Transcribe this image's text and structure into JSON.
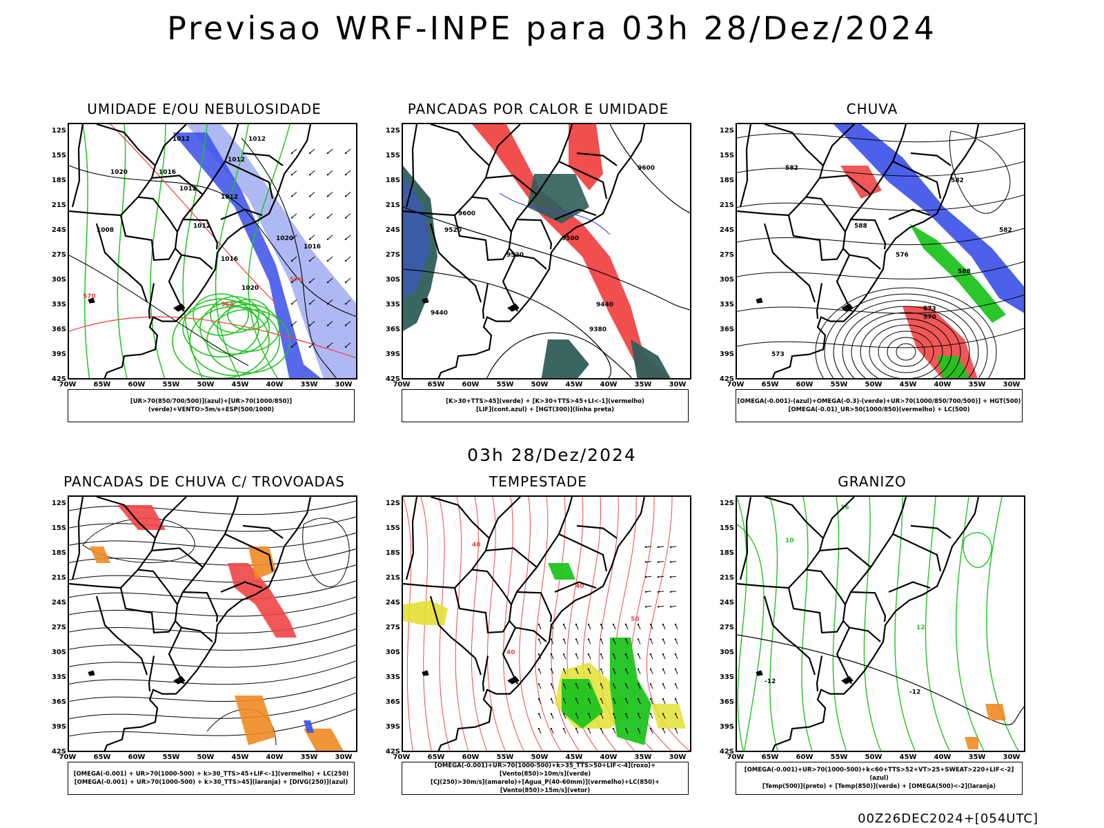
{
  "title": "Previsao WRF-INPE  para 03h 28/Dez/2024",
  "mid_title": "03h 28/Dez/2024",
  "run_label": "00Z26DEC2024+[054UTC]",
  "lat_labels": [
    "12S",
    "15S",
    "18S",
    "21S",
    "24S",
    "27S",
    "30S",
    "33S",
    "36S",
    "39S",
    "42S"
  ],
  "lon_labels": [
    "70W",
    "65W",
    "60W",
    "55W",
    "50W",
    "45W",
    "40W",
    "35W",
    "30W"
  ],
  "colors": {
    "blue": "#3a4fe8",
    "lightblue": "#9aa8f0",
    "green": "#1fc41f",
    "red": "#f04545",
    "darkteal": "#2f5e5a",
    "orange": "#f08a24",
    "yellow": "#e2e034"
  },
  "panels": [
    {
      "id": "umidade",
      "title": "UMIDADE E/OU NEBULOSIDADE",
      "legend": [
        "[UR>70(850/700/500)](azul)+[UR>70(1000/850)](verde)+VENTO>5m/s+ESP(500/1000)"
      ],
      "contour_labels": [
        "1012",
        "1012",
        "1012",
        "1016",
        "1020",
        "1012",
        "1012",
        "1020",
        "1012",
        "1008",
        "1016",
        "1016",
        "1020",
        "576",
        "570",
        "564"
      ]
    },
    {
      "id": "pancadas",
      "title": "PANCADAS POR CALOR E UMIDADE",
      "legend": [
        "[K>30+TTS>45](verde) + [K>30+TTS>45+LI<-1](vermelho)",
        "[LIF](cont.azul) + [HGT(300)](linha preta)"
      ],
      "contour_labels": [
        "9600",
        "9600",
        "9520",
        "9520",
        "9500",
        "9440",
        "9440",
        "9380"
      ]
    },
    {
      "id": "chuva",
      "title": "CHUVA",
      "legend": [
        "[OMEGA(-0.001)-(azul)+OMEGA(-0.3)-(verde)+UR>70(1000/850/700/500)] + HGT(500)",
        "[OMEGA(-0.01)_UR>50(1000/850)(vermelho) + LC(500)"
      ],
      "contour_labels": [
        "582",
        "582",
        "588",
        "582",
        "576",
        "573",
        "570",
        "573",
        "588"
      ]
    },
    {
      "id": "trovoadas",
      "title": "PANCADAS DE CHUVA C/ TROVOADAS",
      "legend": [
        "[OMEGA(-0.001) + UR>70(1000-500) + k>30_TTS>45+LIF<-1](vermelho) + LC(250)",
        "[OMEGA(-0.001) + UR>70(1000-500) + k>30_TTS>45](laranja) + [DIVG(250)](azul)"
      ],
      "contour_labels": []
    },
    {
      "id": "tempestade",
      "title": "TEMPESTADE",
      "legend": [
        "[OMEGA(-0.001)+UR>70(1000-500)+k>35_TTS>50+LIF<-4](roxo)+[Vento(850)>10m/s](verde)",
        "[CJ(250)>30m/s](amarelo)+[Agua_P(40-60mm)](vermelho)+LC(850)+[Vento(850)>15m/s](vetor)"
      ],
      "contour_labels": [
        "40",
        "40",
        "50",
        "40"
      ]
    },
    {
      "id": "granizo",
      "title": "GRANIZO",
      "legend": [
        "[OMEGA(-0.001)+UR>70(1000-500)+k<60+TTS>52+VT>25+SWEAT>220+LIF<-2](azul)",
        "[Temp(500)](preto) + [Temp(850)](verde) + [OMEGA(500)<-2](laranja)"
      ],
      "contour_labels": [
        "-12",
        "-12",
        "10",
        "12",
        "16"
      ]
    }
  ]
}
